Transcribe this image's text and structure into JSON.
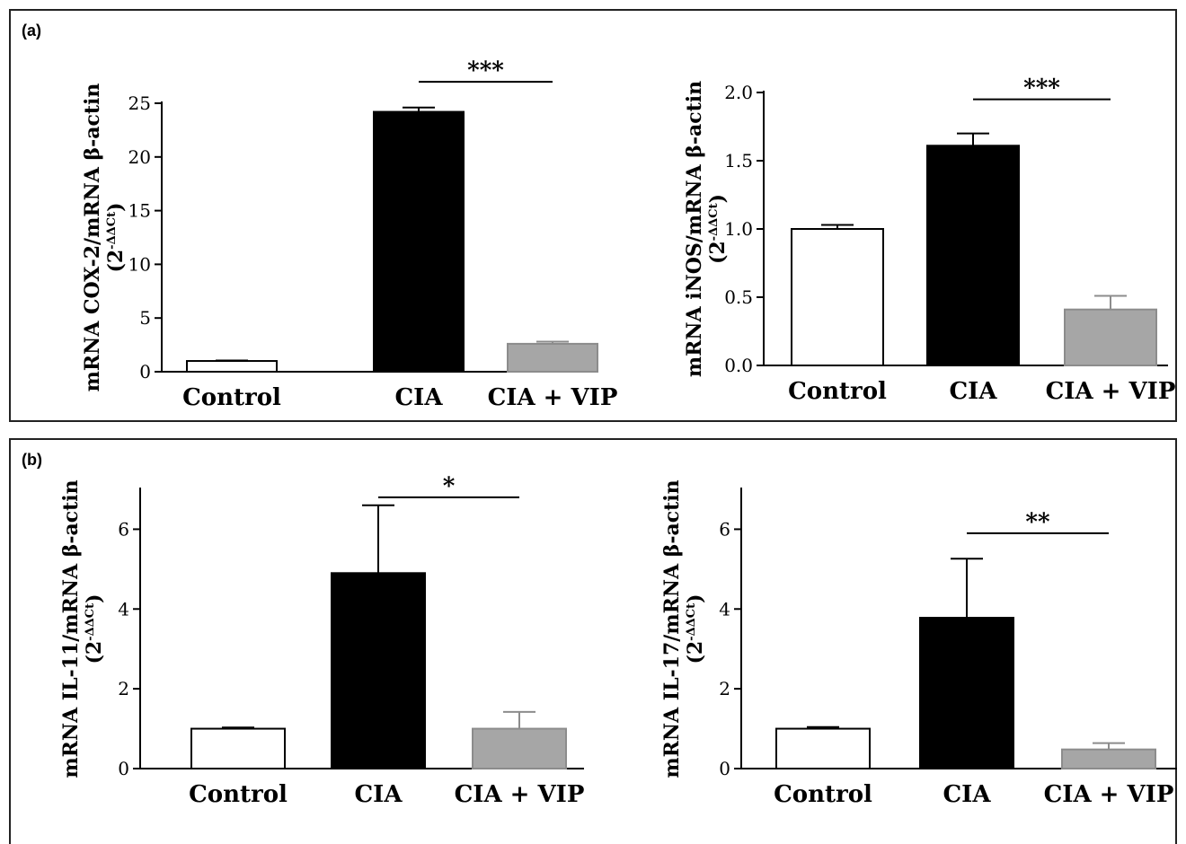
{
  "panels": [
    {
      "label": "(a)"
    },
    {
      "label": "(b)"
    }
  ],
  "colors": {
    "control_fill": "#ffffff",
    "cia_fill": "#000000",
    "cia_vip_fill": "#a6a6a6",
    "stroke": "#000000"
  },
  "chart_data": [
    {
      "type": "bar",
      "panel": "(a)",
      "categories": [
        "Control",
        "CIA",
        "CIA + VIP"
      ],
      "values": [
        1.0,
        24.2,
        2.6
      ],
      "errors": [
        0.05,
        0.4,
        0.2
      ],
      "ylabel": "mRNA COX-2/mRNA β-actin",
      "ylabel_sub": "(2",
      "ylabel_sup": "-ΔΔCt",
      "ylabel_close": ")",
      "ylim": [
        0,
        25
      ],
      "yticks": [
        0,
        5,
        10,
        15,
        20,
        25
      ],
      "ytick_labels": [
        "0",
        "5",
        "10",
        "15",
        "20",
        "25"
      ],
      "significance": {
        "from": "CIA",
        "to": "CIA + VIP",
        "label": "***",
        "y": 27.0
      },
      "grid": false
    },
    {
      "type": "bar",
      "panel": "(a)",
      "categories": [
        "Control",
        "CIA",
        "CIA + VIP"
      ],
      "values": [
        1.0,
        1.61,
        0.41
      ],
      "errors": [
        0.03,
        0.09,
        0.1
      ],
      "ylabel": "mRNA iNOS/mRNA β-actin",
      "ylabel_sub": "(2",
      "ylabel_sup": "-ΔΔCt",
      "ylabel_close": ")",
      "ylim": [
        0,
        2.0
      ],
      "yticks": [
        0,
        0.5,
        1.0,
        1.5,
        2.0
      ],
      "ytick_labels": [
        "0.0",
        "0.5",
        "1.0",
        "1.5",
        "2.0"
      ],
      "significance": {
        "from": "CIA",
        "to": "CIA + VIP",
        "label": "***",
        "y": 1.95
      },
      "grid": false
    },
    {
      "type": "bar",
      "panel": "(b)",
      "categories": [
        "Control",
        "CIA",
        "CIA + VIP"
      ],
      "values": [
        1.0,
        4.9,
        1.0
      ],
      "errors": [
        0.03,
        1.7,
        0.42
      ],
      "ylabel": "mRNA IL-11/mRNA β-actin",
      "ylabel_sub": "(2",
      "ylabel_sup": "-ΔΔCt",
      "ylabel_close": ")",
      "ylim": [
        0,
        7
      ],
      "yticks": [
        0,
        2,
        4,
        6
      ],
      "ytick_labels": [
        "0",
        "2",
        "4",
        "6"
      ],
      "significance": {
        "from": "CIA",
        "to": "CIA + VIP",
        "label": "*",
        "y": 6.8
      },
      "grid": false
    },
    {
      "type": "bar",
      "panel": "(b)",
      "categories": [
        "Control",
        "CIA",
        "CIA + VIP"
      ],
      "values": [
        1.0,
        3.78,
        0.48
      ],
      "errors": [
        0.04,
        1.48,
        0.16
      ],
      "ylabel": "mRNA IL-17/mRNA β-actin",
      "ylabel_sub": "(2",
      "ylabel_sup": "-ΔΔCt",
      "ylabel_close": ")",
      "ylim": [
        0,
        7
      ],
      "yticks": [
        0,
        2,
        4,
        6
      ],
      "ytick_labels": [
        "0",
        "2",
        "4",
        "6"
      ],
      "significance": {
        "from": "CIA",
        "to": "CIA + VIP",
        "label": "**",
        "y": 5.9
      },
      "grid": false
    }
  ]
}
